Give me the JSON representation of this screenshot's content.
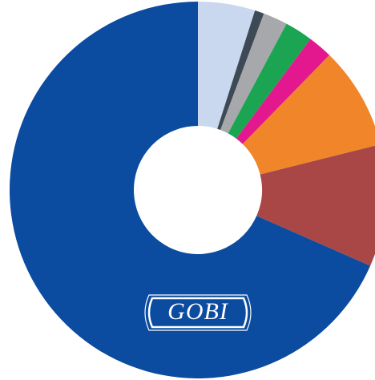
{
  "chart_data": {
    "type": "donut",
    "values": [
      4.9,
      0.8,
      2.1,
      2.4,
      2.1,
      8.8,
      10.5,
      68.4
    ],
    "colors": [
      "#c9d8ee",
      "#3d4a56",
      "#a6a8ab",
      "#1ba552",
      "#e4188e",
      "#f08629",
      "#a84745",
      "#0b4ba0"
    ],
    "logo": "GOBI"
  }
}
